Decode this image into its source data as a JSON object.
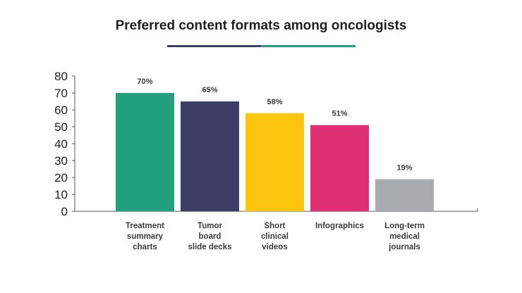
{
  "chart_data": {
    "type": "bar",
    "title": "Preferred content formats among oncologists",
    "title_underline_colors": [
      "#3e3d66",
      "#22a07e"
    ],
    "categories": [
      [
        "Treatment",
        "summary",
        "charts"
      ],
      [
        "Tumor",
        "board",
        "slide decks"
      ],
      [
        "Short",
        "clinical",
        "videos"
      ],
      [
        "Infographics"
      ],
      [
        "Long-term",
        "medical",
        "journals"
      ]
    ],
    "values": [
      70,
      65,
      58,
      51,
      19
    ],
    "data_labels": [
      "70%",
      "65%",
      "58%",
      "51%",
      "19%"
    ],
    "colors": [
      "#22a07e",
      "#3e3d66",
      "#fcc60e",
      "#de3072",
      "#a9abae"
    ],
    "xlabel": "",
    "ylabel": "",
    "ylim": [
      0,
      80
    ],
    "yticks": [
      0,
      10,
      20,
      30,
      40,
      50,
      60,
      70,
      80
    ],
    "grid": false,
    "legend": "none"
  }
}
